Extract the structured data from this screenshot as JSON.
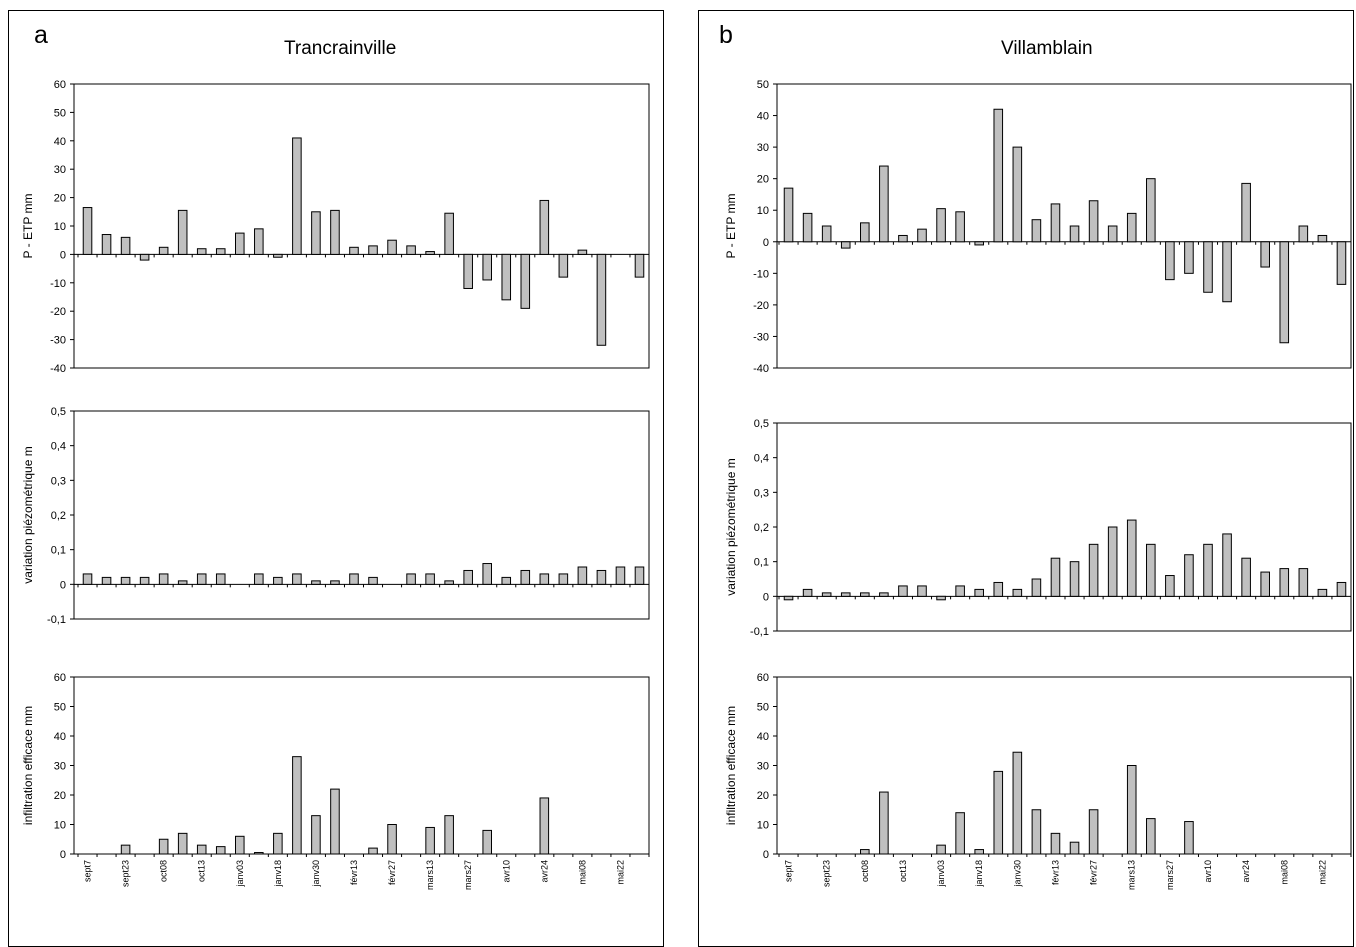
{
  "chart_data": [
    {
      "panel": "a",
      "title": "Trancrainville",
      "type": "bar",
      "x_tick_labels": [
        "sept7",
        "sept23",
        "oct08",
        "oct13",
        "janv03",
        "janv18",
        "janv30",
        "févr13",
        "févr27",
        "mars13",
        "mars27",
        "avr10",
        "avr24",
        "mai08",
        "mai22"
      ],
      "subplots": [
        {
          "ylabel": "P - ETP    mm",
          "ylim": [
            -40,
            60
          ],
          "yticks": [
            "60",
            "50",
            "40",
            "30",
            "20",
            "10",
            "0",
            "-10",
            "-20",
            "-30",
            "-40"
          ],
          "values": [
            16.5,
            7,
            6,
            -2,
            2.5,
            15.5,
            2,
            2,
            7.5,
            9,
            -1,
            41,
            15,
            15.5,
            2.5,
            3,
            5,
            3,
            1,
            14.5,
            -12,
            -9,
            -16,
            -19,
            19,
            -8,
            1.5,
            -32,
            0,
            -8
          ]
        },
        {
          "ylabel": "variation piézométrique   m",
          "ylim": [
            -0.1,
            0.5
          ],
          "yticks": [
            "0,5",
            "0,4",
            "0,3",
            "0,2",
            "0,1",
            "0",
            "-0,1"
          ],
          "values": [
            0.03,
            0.02,
            0.02,
            0.02,
            0.03,
            0.01,
            0.03,
            0.03,
            0,
            0.03,
            0.02,
            0.03,
            0.01,
            0.01,
            0.03,
            0.02,
            0,
            0.03,
            0.03,
            0.01,
            0.04,
            0.06,
            0.02,
            0.04,
            0.03,
            0.03,
            0.05,
            0.04,
            0.05,
            0.05
          ]
        },
        {
          "ylabel": "infiltration efficace   mm",
          "ylim": [
            0,
            60
          ],
          "yticks": [
            "60",
            "50",
            "40",
            "30",
            "20",
            "10",
            "0"
          ],
          "values": [
            0,
            0,
            3,
            0,
            5,
            7,
            3,
            2.5,
            6,
            0.5,
            7,
            33,
            13,
            22,
            0,
            2,
            10,
            0,
            9,
            13,
            0,
            8,
            0,
            0,
            19,
            0,
            0,
            0,
            0,
            0
          ]
        }
      ]
    },
    {
      "panel": "b",
      "title": "Villamblain",
      "type": "bar",
      "x_tick_labels": [
        "sept7",
        "sept23",
        "oct08",
        "oct13",
        "janv03",
        "janv18",
        "janv30",
        "févr13",
        "févr27",
        "mars13",
        "mars27",
        "avr10",
        "avr24",
        "mai08",
        "mai22"
      ],
      "subplots": [
        {
          "ylabel": "P - ETP    mm",
          "ylim": [
            -40,
            50
          ],
          "yticks": [
            "50",
            "40",
            "30",
            "20",
            "10",
            "0",
            "-10",
            "-20",
            "-30",
            "-40"
          ],
          "values": [
            17,
            9,
            5,
            -2,
            6,
            24,
            2,
            4,
            10.5,
            9.5,
            -1,
            42,
            30,
            7,
            12,
            5,
            13,
            5,
            9,
            20,
            -12,
            -10,
            -16,
            -19,
            18.5,
            -8,
            -32,
            5,
            2,
            -13.5
          ]
        },
        {
          "ylabel": "variation piézométrique   m",
          "ylim": [
            -0.1,
            0.5
          ],
          "yticks": [
            "0,5",
            "0,4",
            "0,3",
            "0,2",
            "0,1",
            "0",
            "-0,1"
          ],
          "values": [
            -0.01,
            0.02,
            0.01,
            0.01,
            0.01,
            0.01,
            0.03,
            0.03,
            -0.01,
            0.03,
            0.02,
            0.04,
            0.02,
            0.05,
            0.11,
            0.1,
            0.15,
            0.2,
            0.22,
            0.15,
            0.06,
            0.12,
            0.15,
            0.18,
            0.11,
            0.07,
            0.08,
            0.08,
            0.02,
            0.04
          ]
        },
        {
          "ylabel": "infiltration efficace   mm",
          "ylim": [
            0,
            60
          ],
          "yticks": [
            "60",
            "50",
            "40",
            "30",
            "20",
            "10",
            "0"
          ],
          "values": [
            0,
            0,
            0,
            0,
            1.5,
            21,
            0,
            0,
            3,
            14,
            1.5,
            28,
            34.5,
            15,
            7,
            4,
            15,
            0,
            30,
            12,
            0,
            11,
            0,
            0,
            0,
            0,
            0,
            0,
            0,
            0
          ]
        }
      ]
    }
  ],
  "panels": [
    {
      "letter": "a",
      "title": "Trancrainville"
    },
    {
      "letter": "b",
      "title": "Villamblain"
    }
  ],
  "colors": {
    "bar_fill": "#c0c0c0",
    "bar_stroke": "#000000",
    "axis": "#000000"
  }
}
